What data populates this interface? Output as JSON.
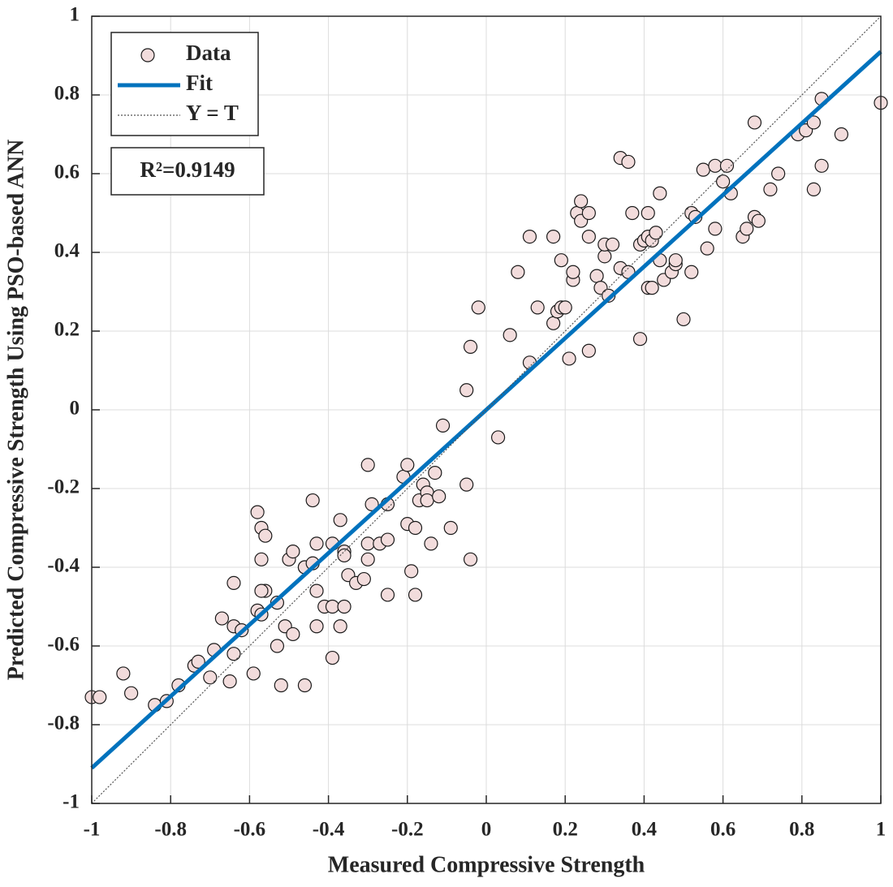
{
  "chart_data": {
    "type": "scatter",
    "xlabel": "Measured Compressive Strength",
    "ylabel": "Predicted Compressive Strength Using PSO-based ANN",
    "annotation": "R²=0.9149",
    "xlim": [
      -1,
      1
    ],
    "ylim": [
      -1,
      1
    ],
    "xticks": [
      -1,
      -0.8,
      -0.6,
      -0.4,
      -0.2,
      0,
      0.2,
      0.4,
      0.6,
      0.8,
      1
    ],
    "yticks": [
      -1,
      -0.8,
      -0.6,
      -0.4,
      -0.2,
      0,
      0.2,
      0.4,
      0.6,
      0.8,
      1
    ],
    "grid": true,
    "legend": "upper left",
    "series": [
      {
        "name": "Data",
        "style": "markers",
        "color": "#f2dcdc",
        "x": [
          -1.0,
          -0.98,
          -0.92,
          -0.9,
          -0.84,
          -0.81,
          -0.78,
          -0.74,
          -0.73,
          -0.7,
          -0.69,
          -0.67,
          -0.64,
          -0.65,
          -0.64,
          -0.64,
          -0.62,
          -0.58,
          -0.59,
          -0.57,
          -0.58,
          -0.57,
          -0.56,
          -0.57,
          -0.57,
          -0.56,
          -0.53,
          -0.53,
          -0.51,
          -0.52,
          -0.5,
          -0.49,
          -0.49,
          -0.46,
          -0.46,
          -0.46,
          -0.44,
          -0.44,
          -0.43,
          -0.43,
          -0.43,
          -0.41,
          -0.39,
          -0.39,
          -0.39,
          -0.37,
          -0.37,
          -0.36,
          -0.36,
          -0.36,
          -0.35,
          -0.33,
          -0.31,
          -0.3,
          -0.3,
          -0.3,
          -0.29,
          -0.27,
          -0.25,
          -0.25,
          -0.25,
          -0.21,
          -0.2,
          -0.2,
          -0.19,
          -0.18,
          -0.18,
          -0.17,
          -0.16,
          -0.15,
          -0.15,
          -0.14,
          -0.13,
          -0.12,
          -0.11,
          -0.09,
          -0.05,
          -0.04,
          -0.05,
          -0.04,
          -0.02,
          0.03,
          0.06,
          0.08,
          0.11,
          0.13,
          0.11,
          0.17,
          0.17,
          0.18,
          0.19,
          0.19,
          0.2,
          0.21,
          0.22,
          0.22,
          0.23,
          0.24,
          0.24,
          0.26,
          0.26,
          0.26,
          0.28,
          0.29,
          0.3,
          0.3,
          0.31,
          0.32,
          0.34,
          0.34,
          0.36,
          0.36,
          0.37,
          0.39,
          0.39,
          0.4,
          0.41,
          0.41,
          0.42,
          0.41,
          0.42,
          0.43,
          0.44,
          0.44,
          0.45,
          0.47,
          0.48,
          0.48,
          0.5,
          0.52,
          0.52,
          0.53,
          0.55,
          0.56,
          0.58,
          0.58,
          0.6,
          0.61,
          0.62,
          0.65,
          0.66,
          0.68,
          0.68,
          0.69,
          0.72,
          0.74,
          0.79,
          0.81,
          0.83,
          0.85,
          0.85,
          0.83,
          0.9,
          1.0
        ],
        "values": [
          -0.73,
          -0.73,
          -0.67,
          -0.72,
          -0.75,
          -0.74,
          -0.7,
          -0.65,
          -0.64,
          -0.68,
          -0.61,
          -0.53,
          -0.55,
          -0.69,
          -0.62,
          -0.44,
          -0.56,
          -0.51,
          -0.67,
          -0.38,
          -0.26,
          -0.52,
          -0.46,
          -0.46,
          -0.3,
          -0.32,
          -0.6,
          -0.49,
          -0.55,
          -0.7,
          -0.38,
          -0.57,
          -0.36,
          -0.4,
          -0.4,
          -0.7,
          -0.39,
          -0.23,
          -0.55,
          -0.46,
          -0.34,
          -0.5,
          -0.5,
          -0.34,
          -0.63,
          -0.55,
          -0.28,
          -0.36,
          -0.37,
          -0.5,
          -0.42,
          -0.44,
          -0.43,
          -0.14,
          -0.34,
          -0.38,
          -0.24,
          -0.34,
          -0.47,
          -0.24,
          -0.33,
          -0.17,
          -0.14,
          -0.29,
          -0.41,
          -0.47,
          -0.3,
          -0.23,
          -0.19,
          -0.21,
          -0.23,
          -0.34,
          -0.16,
          -0.22,
          -0.04,
          -0.3,
          0.05,
          0.16,
          -0.19,
          -0.38,
          0.26,
          -0.07,
          0.19,
          0.35,
          0.44,
          0.26,
          0.12,
          0.44,
          0.22,
          0.25,
          0.38,
          0.26,
          0.26,
          0.13,
          0.33,
          0.35,
          0.5,
          0.48,
          0.53,
          0.5,
          0.15,
          0.44,
          0.34,
          0.31,
          0.39,
          0.42,
          0.29,
          0.42,
          0.64,
          0.36,
          0.35,
          0.63,
          0.5,
          0.42,
          0.18,
          0.43,
          0.31,
          0.5,
          0.31,
          0.44,
          0.43,
          0.45,
          0.38,
          0.55,
          0.33,
          0.35,
          0.37,
          0.38,
          0.23,
          0.35,
          0.5,
          0.49,
          0.61,
          0.41,
          0.62,
          0.46,
          0.58,
          0.62,
          0.55,
          0.44,
          0.46,
          0.49,
          0.73,
          0.48,
          0.56,
          0.6,
          0.7,
          0.71,
          0.73,
          0.79,
          0.62,
          0.56,
          0.7,
          0.78
        ]
      },
      {
        "name": "Fit",
        "style": "line",
        "color": "#0072bd",
        "x": [
          -1,
          1
        ],
        "values": [
          -0.91,
          0.91
        ]
      },
      {
        "name": "Y = T",
        "style": "dotted",
        "color": "#555555",
        "x": [
          -1,
          1
        ],
        "values": [
          -1,
          1
        ]
      }
    ]
  }
}
